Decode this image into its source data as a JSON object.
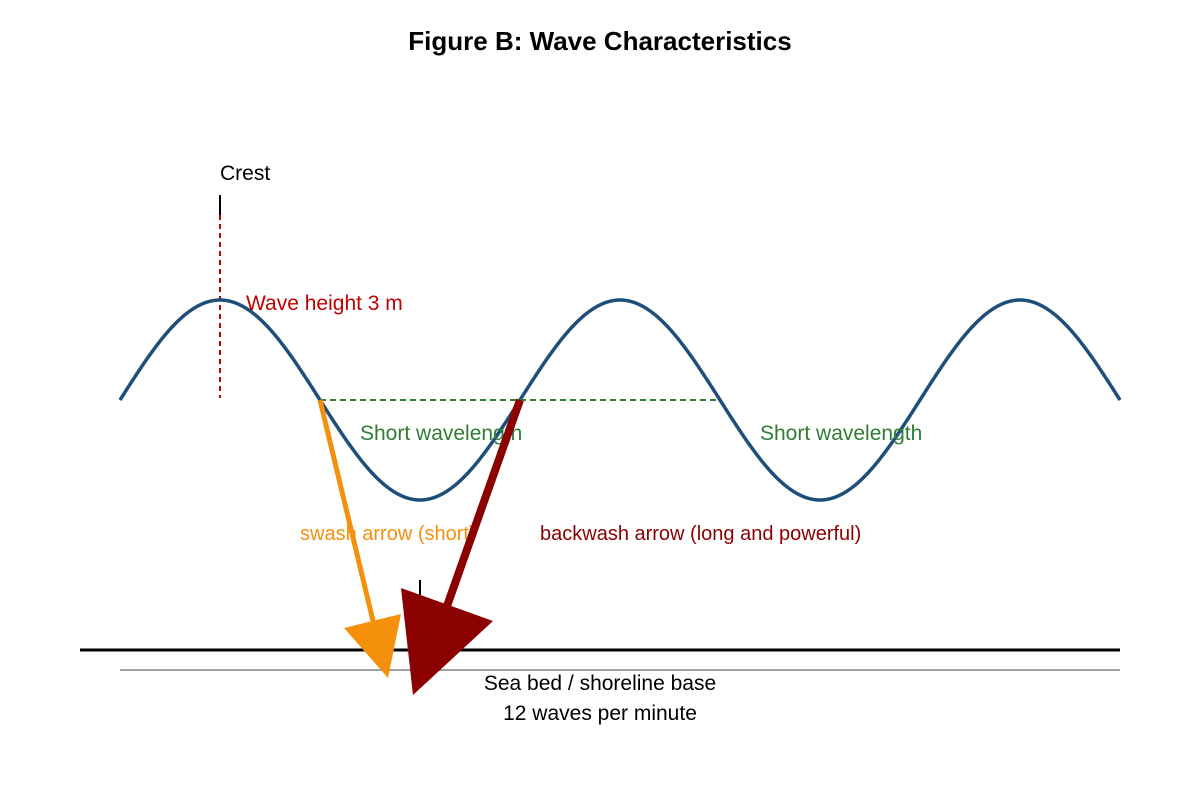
{
  "title": "Figure B: Wave Characteristics",
  "labels": {
    "crest": "Crest",
    "wave_height": "Wave height 3 m",
    "wavelength_1": "Short wavelength",
    "wavelength_2": "Short wavelength",
    "swash": "swash arrow (short)",
    "backwash": "backwash arrow (long and powerful)",
    "sea_bed": "Sea bed / shoreline base",
    "frequency": "12 waves per minute"
  },
  "colors": {
    "wave": "#1f4e79",
    "wave_height_marker": "#c00000",
    "wavelength_marker": "#2e7d32",
    "swash": "#f5900c",
    "backwash": "#8b0000",
    "sea_bed": "#000000",
    "shoreline": "#808080"
  }
}
